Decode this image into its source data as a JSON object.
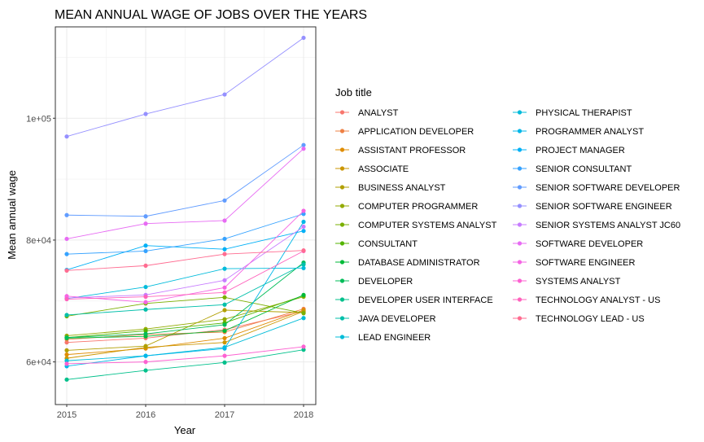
{
  "chart_data": {
    "type": "line",
    "title": "MEAN ANNUAL WAGE OF JOBS OVER THE YEARS",
    "xlabel": "Year",
    "ylabel": "Mean annual wage",
    "x": [
      2015,
      2016,
      2017,
      2018
    ],
    "x_tick_labels": [
      "2015",
      "2016",
      "2017",
      "2018"
    ],
    "ylim": [
      53000,
      115000
    ],
    "y_ticks": [
      60000,
      80000,
      100000
    ],
    "y_tick_labels": [
      "6e+04",
      "8e+04",
      "1e+05"
    ],
    "grid": true,
    "legend_title": "Job title",
    "legend_position": "right",
    "series": [
      {
        "name": "ANALYST",
        "color": "#F8766D",
        "values": [
          63200,
          63900,
          65300,
          68300
        ]
      },
      {
        "name": "APPLICATION DEVELOPER",
        "color": "#EE8044",
        "values": [
          63700,
          64500,
          64900,
          68700
        ]
      },
      {
        "name": "ASSISTANT PROFESSOR",
        "color": "#DF8C00",
        "values": [
          61200,
          62200,
          63900,
          68500
        ]
      },
      {
        "name": "ASSOCIATE",
        "color": "#CB9600",
        "values": [
          60600,
          62400,
          63200,
          68300
        ]
      },
      {
        "name": "BUSINESS ANALYST",
        "color": "#B19F00",
        "values": [
          61900,
          62600,
          68500,
          68100
        ]
      },
      {
        "name": "COMPUTER PROGRAMMER",
        "color": "#93AA00",
        "values": [
          64300,
          65400,
          67000,
          70700
        ]
      },
      {
        "name": "COMPUTER SYSTEMS ANALYST",
        "color": "#7AAF00",
        "values": [
          67500,
          69600,
          70600,
          68000
        ]
      },
      {
        "name": "CONSULTANT",
        "color": "#53B400",
        "values": [
          64000,
          65100,
          66400,
          70900
        ]
      },
      {
        "name": "DATABASE ADMINISTRATOR",
        "color": "#00BA38",
        "values": [
          63900,
          64200,
          65100,
          71000
        ]
      },
      {
        "name": "DEVELOPER",
        "color": "#00BC59",
        "values": [
          64000,
          64600,
          66100,
          76300
        ]
      },
      {
        "name": "DEVELOPER USER INTERFACE",
        "color": "#00C08B",
        "values": [
          57100,
          58600,
          59900,
          62000
        ]
      },
      {
        "name": "JAVA DEVELOPER",
        "color": "#00BFAA",
        "values": [
          67700,
          68600,
          69400,
          76000
        ]
      },
      {
        "name": "LEAD ENGINEER",
        "color": "#00BCD8",
        "values": [
          60200,
          61000,
          62400,
          67200
        ]
      },
      {
        "name": "PHYSICAL THERAPIST",
        "color": "#00BBDB",
        "values": [
          70400,
          72300,
          75300,
          75400
        ]
      },
      {
        "name": "PROGRAMMER ANALYST",
        "color": "#00B7E9",
        "values": [
          59300,
          61000,
          62200,
          83000
        ]
      },
      {
        "name": "PROJECT MANAGER",
        "color": "#00B0F6",
        "values": [
          75100,
          79100,
          78500,
          81500
        ]
      },
      {
        "name": "SENIOR CONSULTANT",
        "color": "#35A2FF",
        "values": [
          77700,
          78200,
          80200,
          84300
        ]
      },
      {
        "name": "SENIOR SOFTWARE DEVELOPER",
        "color": "#619CFF",
        "values": [
          84100,
          83900,
          86500,
          95600
        ]
      },
      {
        "name": "SENIOR SOFTWARE ENGINEER",
        "color": "#9590FF",
        "values": [
          97000,
          100700,
          103900,
          113200
        ]
      },
      {
        "name": "SENIOR SYSTEMS ANALYST JC60",
        "color": "#C77CFF",
        "values": [
          70500,
          71000,
          73400,
          82200
        ]
      },
      {
        "name": "SOFTWARE DEVELOPER",
        "color": "#E76BF3",
        "values": [
          80200,
          82700,
          83200,
          95000
        ]
      },
      {
        "name": "SOFTWARE ENGINEER",
        "color": "#F564E3",
        "values": [
          70800,
          69800,
          72200,
          84800
        ]
      },
      {
        "name": "SYSTEMS ANALYST",
        "color": "#FD61D1",
        "values": [
          59700,
          60000,
          61000,
          62500
        ]
      },
      {
        "name": "TECHNOLOGY ANALYST - US",
        "color": "#FF62BC",
        "values": [
          70300,
          70700,
          71400,
          78200
        ]
      },
      {
        "name": "TECHNOLOGY LEAD - US",
        "color": "#FF6C91",
        "values": [
          75000,
          75800,
          77700,
          78300
        ]
      }
    ]
  }
}
